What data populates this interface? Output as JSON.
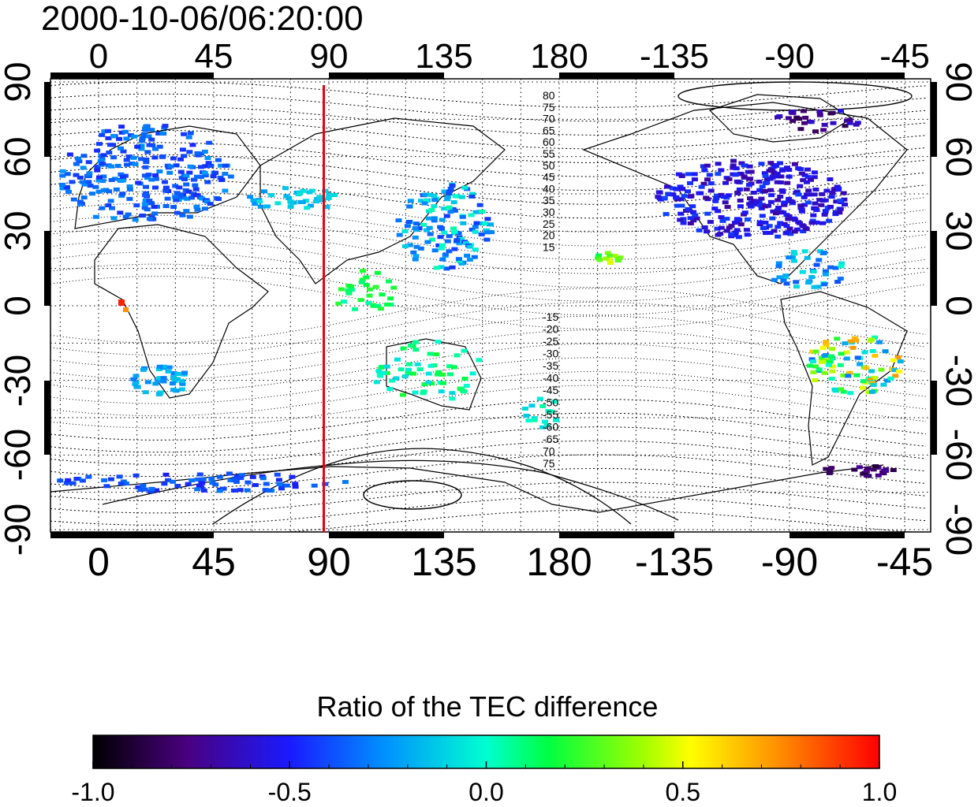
{
  "timestamp": "2000-10-06/06:20:00",
  "map": {
    "lon_ticks": [
      "0",
      "45",
      "90",
      "135",
      "180",
      "-135",
      "-90",
      "-45"
    ],
    "lat_ticks": [
      "90",
      "60",
      "30",
      "0",
      "-30",
      "-60",
      "-90"
    ],
    "terminator_longitude": 88,
    "terminator_color": "#e8000b",
    "contour_labels_north": [
      "80",
      "75",
      "70",
      "65",
      "60",
      "55",
      "50",
      "45",
      "40",
      "35",
      "30",
      "25",
      "20",
      "15"
    ],
    "contour_labels_south": [
      "-15",
      "-20",
      "-25",
      "-30",
      "-35",
      "-40",
      "-45",
      "-50",
      "-55",
      "-60",
      "-65",
      "70",
      "75"
    ]
  },
  "colorbar": {
    "title": "Ratio of the TEC difference",
    "ticks": [
      "-1.0",
      "-0.5",
      "0.0",
      "0.5",
      "1.0"
    ],
    "range": [
      -1.0,
      1.0
    ],
    "colors": [
      "#000000",
      "#6000a0",
      "#2020ff",
      "#00ffff",
      "#00ff30",
      "#ffff00",
      "#ff8000",
      "#ff0000"
    ]
  }
}
